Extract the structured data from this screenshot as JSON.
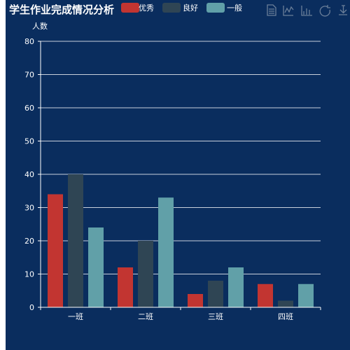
{
  "chart_data": {
    "type": "bar",
    "title": "学生作业完成情况分析",
    "ylabel": "人数",
    "xlabel": "",
    "categories": [
      "一班",
      "二班",
      "三班",
      "四班"
    ],
    "series": [
      {
        "name": "优秀",
        "color": "#c23531",
        "values": [
          34,
          12,
          4,
          7
        ]
      },
      {
        "name": "良好",
        "color": "#2f4554",
        "values": [
          40,
          20,
          8,
          2
        ]
      },
      {
        "name": "一般",
        "color": "#61a0a8",
        "values": [
          24,
          33,
          12,
          7
        ]
      }
    ],
    "ylim": [
      0,
      80
    ],
    "yticks": [
      0,
      10,
      20,
      30,
      40,
      50,
      60,
      70,
      80
    ],
    "grid": true,
    "legend_position": "top"
  },
  "toolbox": [
    "data-view-icon",
    "line-chart-icon",
    "bar-chart-icon",
    "restore-icon",
    "download-icon"
  ]
}
